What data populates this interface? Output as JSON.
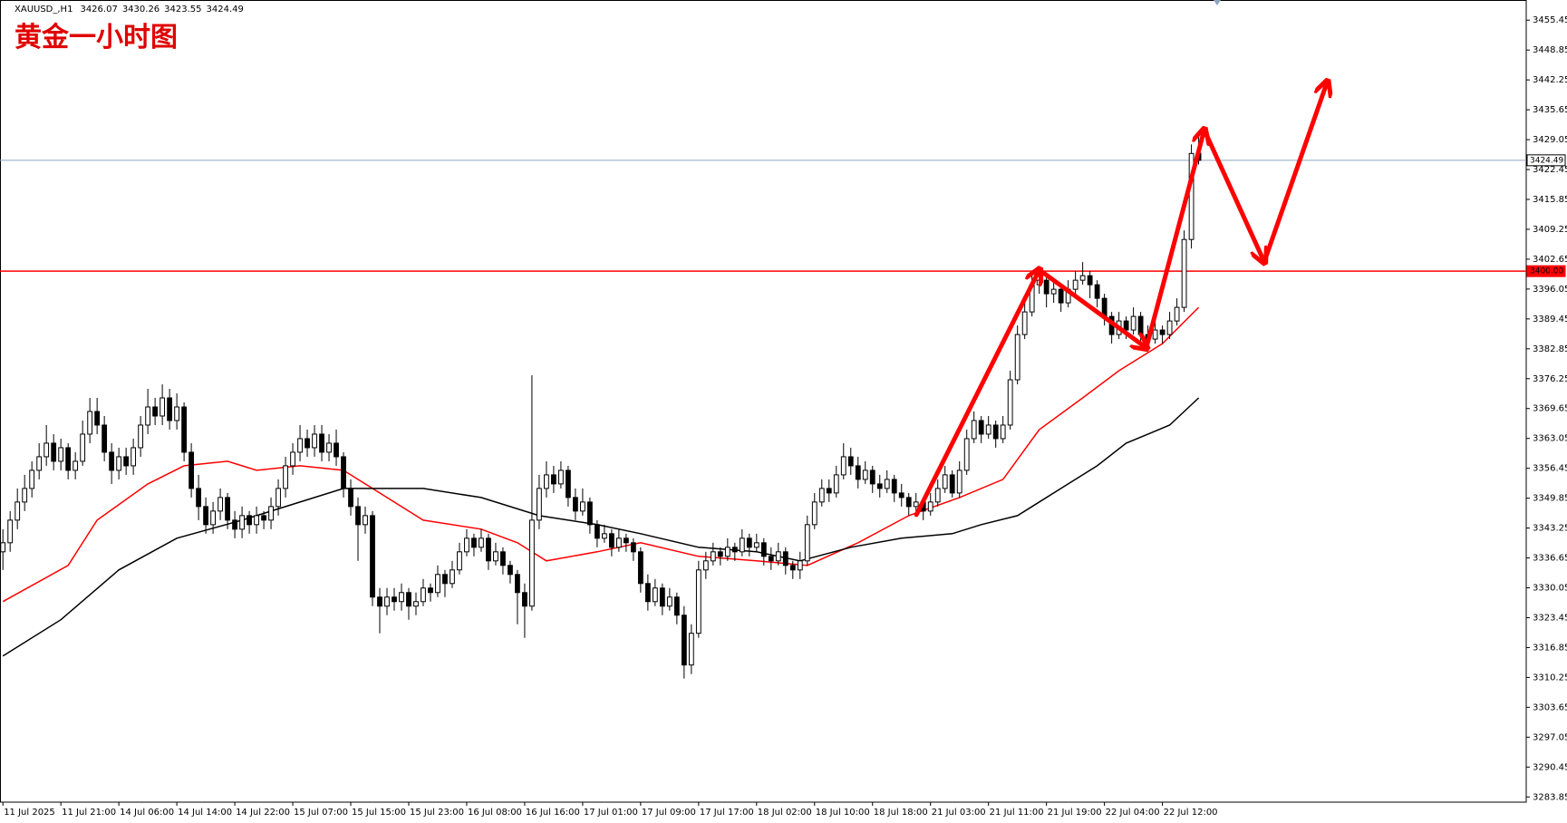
{
  "chart_data": {
    "type": "candlestick",
    "title": "黄金一小时图",
    "symbol": "XAUUSD_,H1",
    "up_color": "#ffffff",
    "down_color": "#000000",
    "outline_color": "#000000",
    "xlim": [
      -0.4,
      210.2
    ],
    "xticks": [
      {
        "value": 0,
        "label": "11 Jul 2025"
      },
      {
        "value": 8,
        "label": "11 Jul 21:00"
      },
      {
        "value": 16,
        "label": "14 Jul 06:00"
      },
      {
        "value": 24,
        "label": "14 Jul 14:00"
      },
      {
        "value": 32,
        "label": "14 Jul 22:00"
      },
      {
        "value": 40,
        "label": "15 Jul 07:00"
      },
      {
        "value": 48,
        "label": "15 Jul 15:00"
      },
      {
        "value": 56,
        "label": "15 Jul 23:00"
      },
      {
        "value": 64,
        "label": "16 Jul 08:00"
      },
      {
        "value": 72,
        "label": "16 Jul 16:00"
      },
      {
        "value": 80,
        "label": "17 Jul 01:00"
      },
      {
        "value": 88,
        "label": "17 Jul 09:00"
      },
      {
        "value": 96,
        "label": "17 Jul 17:00"
      },
      {
        "value": 104,
        "label": "18 Jul 02:00"
      },
      {
        "value": 112,
        "label": "18 Jul 10:00"
      },
      {
        "value": 120,
        "label": "18 Jul 18:00"
      },
      {
        "value": 128,
        "label": "21 Jul 03:00"
      },
      {
        "value": 136,
        "label": "21 Jul 11:00"
      },
      {
        "value": 144,
        "label": "21 Jul 19:00"
      },
      {
        "value": 152,
        "label": "22 Jul 04:00"
      },
      {
        "value": 160,
        "label": "22 Jul 12:00"
      }
    ],
    "ylim": [
      3282.7,
      3459.9
    ],
    "yticks": [
      3455.45,
      3448.85,
      3442.25,
      3435.65,
      3429.05,
      3422.45,
      3415.85,
      3409.25,
      3402.65,
      3396.05,
      3389.45,
      3382.85,
      3376.25,
      3369.65,
      3363.05,
      3356.45,
      3349.85,
      3343.25,
      3336.65,
      3330.05,
      3323.45,
      3316.85,
      3310.25,
      3303.65,
      3297.05,
      3290.45,
      3283.85
    ],
    "levels": [
      {
        "value": 3400,
        "label": "3400.00",
        "color": "#ff0000"
      },
      {
        "value": 3424.49,
        "color": "#8fa4bd"
      }
    ],
    "series": [
      {
        "color": "#ff0000",
        "x": [
          0,
          9,
          13,
          20,
          25,
          31,
          35,
          41,
          47,
          51,
          58,
          66,
          71,
          75,
          82,
          88,
          96,
          104,
          111,
          118,
          125,
          132,
          138,
          143,
          149,
          154,
          160,
          165
        ],
        "values": [
          3327,
          3335,
          3345,
          3353,
          3357,
          3358,
          3356,
          3357,
          3356,
          3352,
          3345,
          3343,
          3340,
          3336,
          3338,
          3340,
          3337,
          3336,
          3335,
          3340,
          3346,
          3350,
          3354,
          3365,
          3372,
          3378,
          3384,
          3392
        ]
      },
      {
        "color": "#000000",
        "x": [
          0,
          8,
          16,
          24,
          33,
          41,
          47,
          51,
          58,
          66,
          74,
          82,
          88,
          96,
          104,
          110,
          117,
          124,
          131,
          135,
          140,
          146,
          151,
          155,
          161,
          165
        ],
        "values": [
          3315,
          3323,
          3334,
          3341,
          3345,
          3349,
          3352,
          3352,
          3352,
          3350,
          3346,
          3344,
          3342,
          3339,
          3338,
          3336,
          3339,
          3341,
          3342,
          3344,
          3346,
          3352,
          3357,
          3362,
          3366,
          3372
        ]
      }
    ],
    "ohlc": [
      [
        3338,
        3343,
        3334,
        3340
      ],
      [
        3340,
        3347,
        3338,
        3345
      ],
      [
        3345,
        3352,
        3343,
        3349
      ],
      [
        3349,
        3355,
        3347,
        3352
      ],
      [
        3352,
        3358,
        3350,
        3356
      ],
      [
        3356,
        3362,
        3354,
        3359
      ],
      [
        3359,
        3366,
        3357,
        3362
      ],
      [
        3362,
        3364,
        3356,
        3358
      ],
      [
        3358,
        3363,
        3356,
        3361
      ],
      [
        3361,
        3362,
        3354,
        3356
      ],
      [
        3356,
        3360,
        3354,
        3358
      ],
      [
        3358,
        3367,
        3357,
        3364
      ],
      [
        3364,
        3372,
        3362,
        3369
      ],
      [
        3369,
        3372,
        3364,
        3366
      ],
      [
        3366,
        3368,
        3358,
        3360
      ],
      [
        3360,
        3362,
        3353,
        3356
      ],
      [
        3356,
        3361,
        3354,
        3359
      ],
      [
        3359,
        3361,
        3355,
        3357
      ],
      [
        3357,
        3363,
        3355,
        3361
      ],
      [
        3361,
        3368,
        3359,
        3366
      ],
      [
        3366,
        3374,
        3364,
        3370
      ],
      [
        3370,
        3372,
        3366,
        3368
      ],
      [
        3368,
        3375,
        3366,
        3372
      ],
      [
        3372,
        3374,
        3365,
        3367
      ],
      [
        3367,
        3373,
        3365,
        3370
      ],
      [
        3370,
        3371,
        3358,
        3360
      ],
      [
        3360,
        3362,
        3350,
        3352
      ],
      [
        3352,
        3355,
        3345,
        3348
      ],
      [
        3348,
        3350,
        3342,
        3344
      ],
      [
        3344,
        3349,
        3342,
        3347
      ],
      [
        3347,
        3352,
        3345,
        3350
      ],
      [
        3350,
        3351,
        3343,
        3345
      ],
      [
        3345,
        3347,
        3341,
        3343
      ],
      [
        3343,
        3348,
        3341,
        3346
      ],
      [
        3346,
        3347,
        3342,
        3344
      ],
      [
        3344,
        3348,
        3342,
        3346
      ],
      [
        3346,
        3347,
        3343,
        3345
      ],
      [
        3345,
        3350,
        3343,
        3348
      ],
      [
        3348,
        3354,
        3346,
        3352
      ],
      [
        3352,
        3359,
        3350,
        3357
      ],
      [
        3357,
        3362,
        3355,
        3360
      ],
      [
        3360,
        3366,
        3358,
        3363
      ],
      [
        3363,
        3365,
        3359,
        3361
      ],
      [
        3361,
        3366,
        3359,
        3364
      ],
      [
        3364,
        3366,
        3358,
        3360
      ],
      [
        3360,
        3364,
        3358,
        3362
      ],
      [
        3362,
        3365,
        3357,
        3359
      ],
      [
        3359,
        3360,
        3350,
        3352
      ],
      [
        3352,
        3354,
        3346,
        3348
      ],
      [
        3348,
        3350,
        3336,
        3344
      ],
      [
        3344,
        3348,
        3342,
        3346
      ],
      [
        3346,
        3347,
        3326,
        3328
      ],
      [
        3328,
        3330,
        3320,
        3326
      ],
      [
        3326,
        3330,
        3324,
        3328
      ],
      [
        3328,
        3330,
        3325,
        3327
      ],
      [
        3327,
        3331,
        3325,
        3329
      ],
      [
        3329,
        3330,
        3323,
        3326
      ],
      [
        3326,
        3329,
        3324,
        3327
      ],
      [
        3327,
        3332,
        3326,
        3330
      ],
      [
        3330,
        3331,
        3327,
        3329
      ],
      [
        3329,
        3335,
        3328,
        3333
      ],
      [
        3333,
        3334,
        3328,
        3331
      ],
      [
        3331,
        3336,
        3330,
        3334
      ],
      [
        3334,
        3340,
        3333,
        3338
      ],
      [
        3338,
        3343,
        3337,
        3341
      ],
      [
        3341,
        3342,
        3337,
        3339
      ],
      [
        3339,
        3343,
        3338,
        3341
      ],
      [
        3341,
        3342,
        3334,
        3336
      ],
      [
        3336,
        3340,
        3335,
        3338
      ],
      [
        3338,
        3339,
        3333,
        3335
      ],
      [
        3335,
        3336,
        3331,
        3333
      ],
      [
        3333,
        3334,
        3322,
        3329
      ],
      [
        3329,
        3331,
        3319,
        3326
      ],
      [
        3326,
        3377,
        3325,
        3345
      ],
      [
        3345,
        3355,
        3343,
        3352
      ],
      [
        3352,
        3358,
        3350,
        3355
      ],
      [
        3355,
        3357,
        3351,
        3353
      ],
      [
        3353,
        3358,
        3352,
        3356
      ],
      [
        3356,
        3357,
        3348,
        3350
      ],
      [
        3350,
        3352,
        3345,
        3347
      ],
      [
        3347,
        3352,
        3346,
        3349
      ],
      [
        3349,
        3350,
        3342,
        3344
      ],
      [
        3344,
        3345,
        3339,
        3341
      ],
      [
        3341,
        3344,
        3340,
        3342
      ],
      [
        3342,
        3343,
        3337,
        3339
      ],
      [
        3339,
        3343,
        3338,
        3341
      ],
      [
        3341,
        3342,
        3338,
        3340
      ],
      [
        3340,
        3341,
        3336,
        3338
      ],
      [
        3338,
        3339,
        3329,
        3331
      ],
      [
        3331,
        3333,
        3325,
        3327
      ],
      [
        3327,
        3332,
        3326,
        3330
      ],
      [
        3330,
        3331,
        3324,
        3326
      ],
      [
        3326,
        3330,
        3325,
        3328
      ],
      [
        3328,
        3329,
        3322,
        3324
      ],
      [
        3324,
        3326,
        3310,
        3313
      ],
      [
        3313,
        3322,
        3311,
        3320
      ],
      [
        3320,
        3336,
        3319,
        3334
      ],
      [
        3334,
        3338,
        3332,
        3336
      ],
      [
        3336,
        3340,
        3335,
        3338
      ],
      [
        3338,
        3339,
        3335,
        3337
      ],
      [
        3337,
        3341,
        3336,
        3339
      ],
      [
        3339,
        3340,
        3336,
        3338
      ],
      [
        3338,
        3343,
        3337,
        3341
      ],
      [
        3341,
        3342,
        3337,
        3339
      ],
      [
        3339,
        3342,
        3338,
        3340
      ],
      [
        3340,
        3341,
        3335,
        3337
      ],
      [
        3337,
        3339,
        3334,
        3336
      ],
      [
        3336,
        3340,
        3335,
        3338
      ],
      [
        3338,
        3339,
        3333,
        3335
      ],
      [
        3335,
        3336,
        3332,
        3334
      ],
      [
        3334,
        3338,
        3332,
        3336
      ],
      [
        3336,
        3346,
        3335,
        3344
      ],
      [
        3344,
        3351,
        3343,
        3349
      ],
      [
        3349,
        3354,
        3348,
        3352
      ],
      [
        3352,
        3354,
        3349,
        3351
      ],
      [
        3351,
        3357,
        3350,
        3355
      ],
      [
        3355,
        3362,
        3354,
        3359
      ],
      [
        3359,
        3361,
        3355,
        3357
      ],
      [
        3357,
        3359,
        3352,
        3354
      ],
      [
        3354,
        3358,
        3353,
        3356
      ],
      [
        3356,
        3357,
        3351,
        3353
      ],
      [
        3353,
        3355,
        3350,
        3352
      ],
      [
        3352,
        3356,
        3351,
        3354
      ],
      [
        3354,
        3355,
        3349,
        3351
      ],
      [
        3351,
        3353,
        3348,
        3350
      ],
      [
        3350,
        3351,
        3346,
        3348
      ],
      [
        3348,
        3351,
        3347,
        3349
      ],
      [
        3349,
        3350,
        3345,
        3347
      ],
      [
        3347,
        3351,
        3346,
        3349
      ],
      [
        3349,
        3354,
        3348,
        3352
      ],
      [
        3352,
        3357,
        3351,
        3355
      ],
      [
        3355,
        3356,
        3350,
        3351
      ],
      [
        3351,
        3358,
        3350,
        3356
      ],
      [
        3356,
        3365,
        3355,
        3363
      ],
      [
        3363,
        3369,
        3362,
        3367
      ],
      [
        3367,
        3368,
        3362,
        3364
      ],
      [
        3364,
        3368,
        3363,
        3366
      ],
      [
        3366,
        3367,
        3361,
        3363
      ],
      [
        3363,
        3368,
        3362,
        3366
      ],
      [
        3366,
        3378,
        3365,
        3376
      ],
      [
        3376,
        3388,
        3375,
        3386
      ],
      [
        3386,
        3393,
        3385,
        3391
      ],
      [
        3391,
        3399,
        3390,
        3397
      ],
      [
        3397,
        3401,
        3395,
        3398
      ],
      [
        3398,
        3399,
        3392,
        3395
      ],
      [
        3395,
        3398,
        3393,
        3396
      ],
      [
        3396,
        3397,
        3391,
        3393
      ],
      [
        3393,
        3398,
        3392,
        3396
      ],
      [
        3396,
        3400,
        3395,
        3398
      ],
      [
        3398,
        3402,
        3397,
        3399
      ],
      [
        3399,
        3400,
        3394,
        3397
      ],
      [
        3397,
        3398,
        3392,
        3394
      ],
      [
        3394,
        3395,
        3388,
        3390
      ],
      [
        3390,
        3391,
        3384,
        3386
      ],
      [
        3386,
        3391,
        3385,
        3389
      ],
      [
        3389,
        3390,
        3385,
        3387
      ],
      [
        3387,
        3392,
        3386,
        3390
      ],
      [
        3390,
        3391,
        3384,
        3386
      ],
      [
        3386,
        3388,
        3383,
        3385
      ],
      [
        3385,
        3389,
        3384,
        3387
      ],
      [
        3387,
        3388,
        3384,
        3386
      ],
      [
        3386,
        3391,
        3385,
        3389
      ],
      [
        3389,
        3394,
        3388,
        3392
      ],
      [
        3392,
        3409,
        3391,
        3407
      ],
      [
        3407,
        3428,
        3405,
        3426
      ],
      [
        3426.07,
        3430.26,
        3423.55,
        3424.49
      ]
    ]
  }
}
